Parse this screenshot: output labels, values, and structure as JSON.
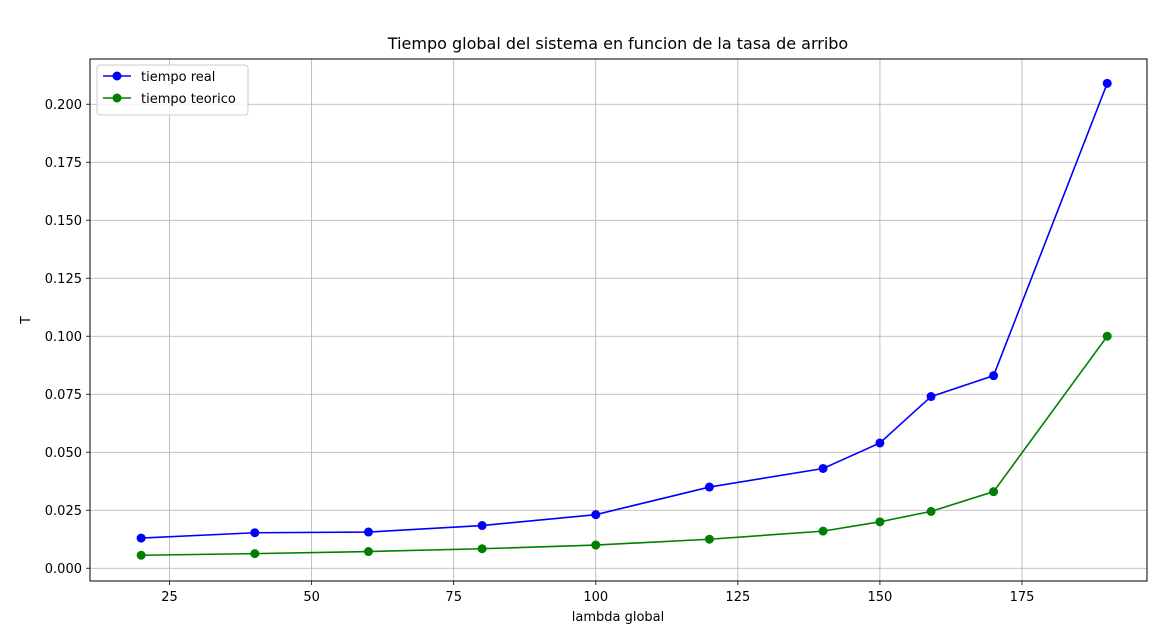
{
  "chart_data": {
    "type": "line",
    "title": "Tiempo global del sistema en funcion de la tasa de arribo",
    "xlabel": "lambda global",
    "ylabel": "T",
    "xlim": [
      11,
      197
    ],
    "ylim": [
      -0.0055,
      0.2195
    ],
    "xticks": [
      25,
      50,
      75,
      100,
      125,
      150,
      175
    ],
    "yticks": [
      0.0,
      0.025,
      0.05,
      0.075,
      0.1,
      0.125,
      0.15,
      0.175,
      0.2
    ],
    "ytick_labels": [
      "0.000",
      "0.025",
      "0.050",
      "0.075",
      "0.100",
      "0.125",
      "0.150",
      "0.175",
      "0.200"
    ],
    "grid": true,
    "legend_position": "upper-left",
    "series": [
      {
        "name": "tiempo real",
        "color": "#0000ff",
        "marker": "circle",
        "x": [
          20,
          40,
          60,
          80,
          100,
          120,
          140,
          150,
          159,
          170,
          190
        ],
        "y": [
          0.013,
          0.0153,
          0.0156,
          0.0184,
          0.0231,
          0.035,
          0.043,
          0.054,
          0.074,
          0.083,
          0.209
        ]
      },
      {
        "name": "tiempo teorico",
        "color": "#008000",
        "marker": "circle",
        "x": [
          20,
          40,
          60,
          80,
          100,
          120,
          140,
          150,
          159,
          170,
          190
        ],
        "y": [
          0.0056,
          0.0063,
          0.0072,
          0.0084,
          0.01,
          0.0125,
          0.016,
          0.02,
          0.0245,
          0.033,
          0.1
        ]
      }
    ]
  }
}
